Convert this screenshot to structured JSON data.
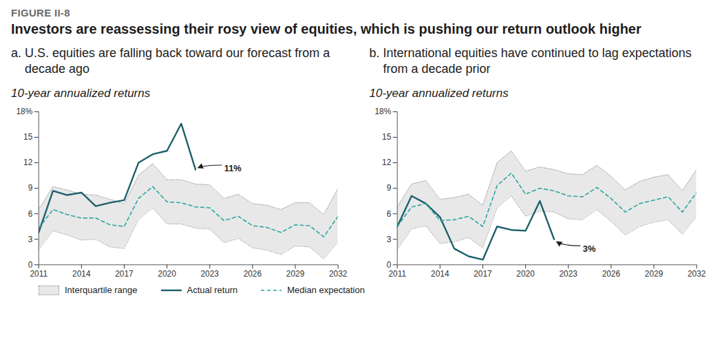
{
  "figure_label": "FIGURE II-8",
  "title": "Investors are reassessing their rosy view of equities, which is pushing our return outlook higher",
  "chart_data": [
    {
      "type": "line",
      "title": "a. U.S. equities are falling back toward our forecast from a decade ago",
      "subtitle": "10-year annualized returns",
      "x": [
        2011,
        2012,
        2013,
        2014,
        2015,
        2016,
        2017,
        2018,
        2019,
        2020,
        2021,
        2022,
        2023,
        2024,
        2025,
        2026,
        2027,
        2028,
        2029,
        2030,
        2031,
        2032
      ],
      "xlim": [
        2011,
        2032
      ],
      "xticks": [
        2011,
        2014,
        2017,
        2020,
        2023,
        2026,
        2029,
        2032
      ],
      "ylim": [
        0,
        18
      ],
      "yticks": [
        0,
        3,
        6,
        9,
        12,
        15,
        {
          "value": 18,
          "label": "18%"
        }
      ],
      "series": [
        {
          "name": "Interquartile range",
          "type": "band",
          "color": "#e8e8e8",
          "lower": [
            1.8,
            4.0,
            3.5,
            2.9,
            3.0,
            2.1,
            1.9,
            5.3,
            6.7,
            4.8,
            4.8,
            4.3,
            4.2,
            2.6,
            3.1,
            2.0,
            1.7,
            1.2,
            2.2,
            2.1,
            0.7,
            2.7
          ],
          "upper": [
            6.5,
            9.2,
            8.8,
            8.3,
            8.2,
            7.7,
            7.2,
            10.5,
            11.9,
            10.0,
            10.0,
            9.5,
            9.4,
            7.8,
            8.3,
            7.2,
            7.0,
            6.5,
            7.3,
            7.3,
            5.9,
            9.0
          ]
        },
        {
          "name": "Actual return",
          "type": "line",
          "color": "#1b5f6b",
          "line_style": "solid",
          "values": [
            3.8,
            8.7,
            8.2,
            8.5,
            6.9,
            7.3,
            7.6,
            12.0,
            13.0,
            13.4,
            16.6,
            11.2,
            null,
            null,
            null,
            null,
            null,
            null,
            null,
            null,
            null,
            null
          ]
        },
        {
          "name": "Median expectation",
          "type": "line",
          "color": "#2aa5a1",
          "line_style": "dashed",
          "values": [
            4.3,
            6.5,
            5.9,
            5.5,
            5.5,
            4.7,
            4.5,
            7.8,
            9.2,
            7.4,
            7.3,
            6.8,
            6.7,
            5.2,
            5.7,
            4.6,
            4.4,
            3.8,
            4.7,
            4.6,
            3.3,
            5.7
          ]
        }
      ],
      "annotations": [
        {
          "text": "11%",
          "x": 2022,
          "y": 11.2
        }
      ]
    },
    {
      "type": "line",
      "title": "b. International equities have continued to lag expectations from a decade prior",
      "subtitle": "10-year annualized returns",
      "x": [
        2011,
        2012,
        2013,
        2014,
        2015,
        2016,
        2017,
        2018,
        2019,
        2020,
        2021,
        2022,
        2023,
        2024,
        2025,
        2026,
        2027,
        2028,
        2029,
        2030,
        2031,
        2032
      ],
      "xlim": [
        2011,
        2032
      ],
      "xticks": [
        2011,
        2014,
        2017,
        2020,
        2023,
        2026,
        2029,
        2032
      ],
      "ylim": [
        0,
        18
      ],
      "yticks": [
        0,
        3,
        6,
        9,
        12,
        15,
        {
          "value": 18,
          "label": "18%"
        }
      ],
      "series": [
        {
          "name": "Interquartile range",
          "type": "band",
          "color": "#e8e8e8",
          "lower": [
            1.8,
            4.2,
            4.6,
            2.5,
            2.7,
            3.2,
            2.0,
            6.7,
            8.1,
            5.7,
            6.3,
            6.2,
            5.4,
            5.3,
            6.5,
            5.1,
            3.5,
            4.5,
            5.0,
            5.3,
            3.6,
            5.7
          ],
          "upper": [
            6.8,
            9.5,
            9.9,
            7.7,
            7.9,
            8.3,
            7.0,
            12.0,
            13.4,
            11.0,
            11.5,
            11.2,
            10.7,
            10.6,
            11.7,
            10.4,
            8.8,
            9.8,
            10.3,
            10.6,
            8.7,
            11.2
          ]
        },
        {
          "name": "Actual return",
          "type": "line",
          "color": "#1b5f6b",
          "line_style": "solid",
          "values": [
            4.5,
            8.1,
            7.2,
            5.6,
            1.9,
            1.0,
            0.6,
            4.5,
            4.1,
            4.0,
            7.5,
            3.0,
            null,
            null,
            null,
            null,
            null,
            null,
            null,
            null,
            null,
            null
          ]
        },
        {
          "name": "Median expectation",
          "type": "line",
          "color": "#2aa5a1",
          "line_style": "dashed",
          "values": [
            4.5,
            6.8,
            7.2,
            5.2,
            5.3,
            5.7,
            4.5,
            9.3,
            10.8,
            8.3,
            9.0,
            8.7,
            8.1,
            8.0,
            9.1,
            7.8,
            6.2,
            7.2,
            7.6,
            8.0,
            6.2,
            8.5
          ]
        }
      ],
      "annotations": [
        {
          "text": "3%",
          "x": 2022,
          "y": 3.0
        }
      ]
    }
  ]
}
